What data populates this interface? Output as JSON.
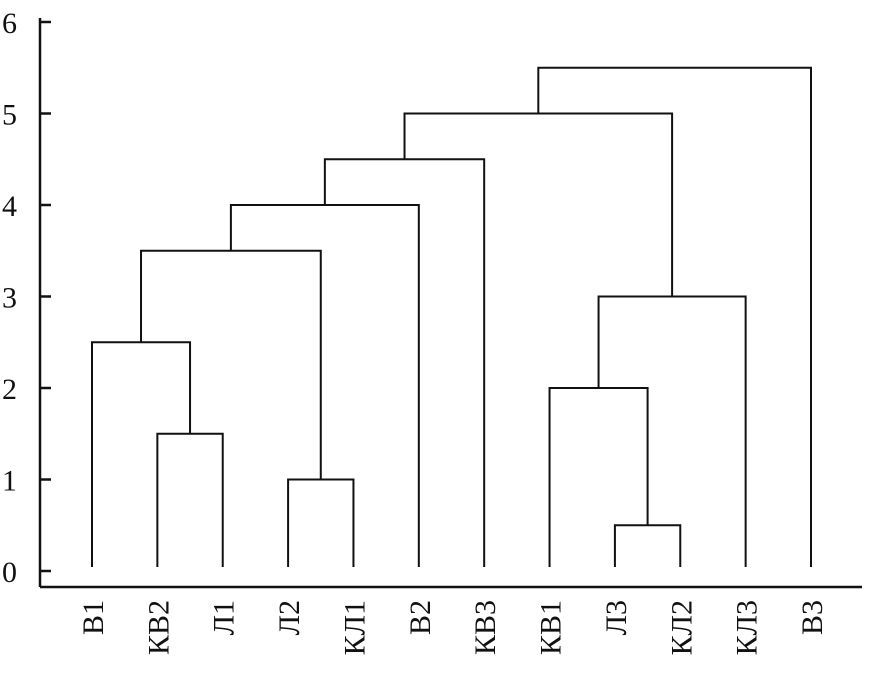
{
  "chart_data": {
    "type": "dendrogram",
    "title": "",
    "xlabel": "",
    "ylabel": "",
    "ylim": [
      0,
      6
    ],
    "yticks": [
      "0",
      "1",
      "2",
      "3",
      "4",
      "5",
      "6"
    ],
    "grid": false,
    "leaves": [
      "В1",
      "КВ2",
      "Л1",
      "Л2",
      "КЛ1",
      "В2",
      "КВ3",
      "КВ1",
      "Л3",
      "КЛ2",
      "КЛ3",
      "В3"
    ],
    "merges": [
      {
        "a": 1,
        "b": 2,
        "height": 1.5
      },
      {
        "a": 3,
        "b": 4,
        "height": 1.0
      },
      {
        "a": 8,
        "b": 9,
        "height": 0.5
      },
      {
        "a": 0,
        "b": 12,
        "height": 2.5
      },
      {
        "a": 7,
        "b": 14,
        "height": 2.0
      },
      {
        "a": 16,
        "b": 10,
        "height": 3.0
      },
      {
        "a": 15,
        "b": 13,
        "height": 3.5
      },
      {
        "a": 18,
        "b": 5,
        "height": 4.0
      },
      {
        "a": 19,
        "b": 6,
        "height": 4.5
      },
      {
        "a": 20,
        "b": 17,
        "height": 5.0
      },
      {
        "a": 21,
        "b": 11,
        "height": 5.5
      }
    ]
  }
}
